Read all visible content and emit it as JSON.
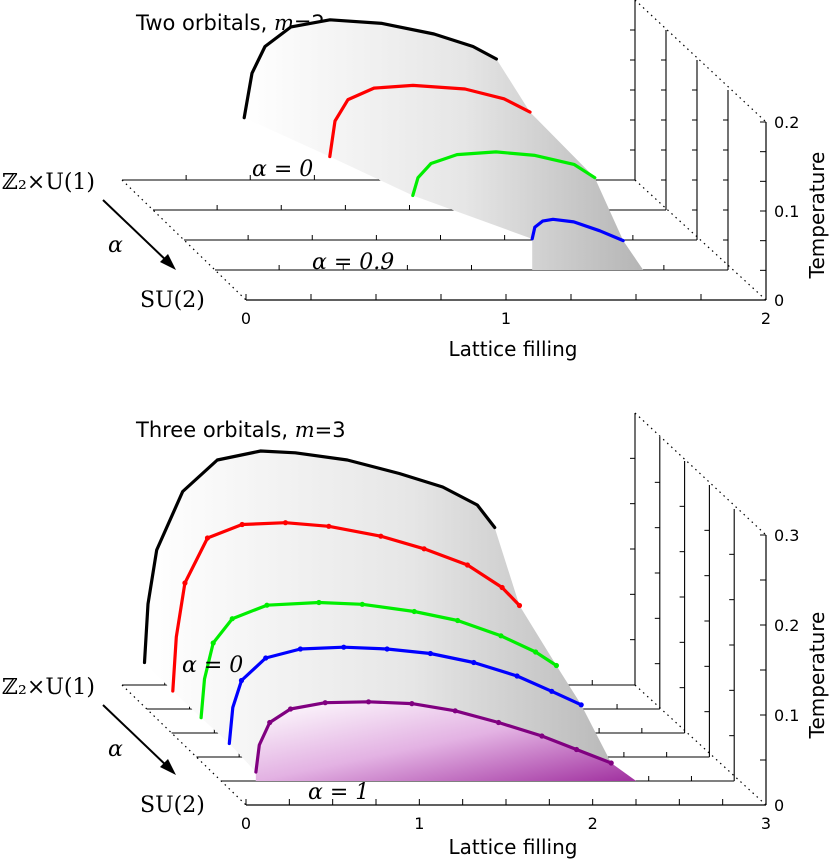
{
  "chart_data": [
    {
      "type": "line",
      "title": "Two orbitals, m=2",
      "title_prefix": "Two orbitals, ",
      "title_var": "m",
      "title_suffix": "=2",
      "xlabel": "Lattice filling",
      "ylabel": "Temperature",
      "xlim": [
        0,
        2
      ],
      "ylim": [
        0,
        0.2
      ],
      "x_ticks": [
        "0",
        "1",
        "2"
      ],
      "y_ticks": [
        "0",
        "0.1",
        "0.2"
      ],
      "depth_axis": {
        "top": "ℤ₂×U(1)",
        "bottom": "SU(2)",
        "arrow_label": "α"
      },
      "layer_labels": [
        {
          "layer": 0,
          "text": "α = 0"
        },
        {
          "layer": 3,
          "text": "α = 0.9"
        }
      ],
      "series": [
        {
          "layer": 0,
          "color": "#000000",
          "x": [
            0.47,
            0.5,
            0.55,
            0.65,
            0.8,
            1.0,
            1.2,
            1.35,
            1.44
          ],
          "y": [
            0.07,
            0.12,
            0.15,
            0.172,
            0.18,
            0.176,
            0.164,
            0.15,
            0.136
          ]
        },
        {
          "layer": 1,
          "color": "#ff0000",
          "x": [
            0.68,
            0.7,
            0.75,
            0.85,
            1.0,
            1.2,
            1.35,
            1.45
          ],
          "y": [
            0.06,
            0.1,
            0.124,
            0.137,
            0.14,
            0.136,
            0.125,
            0.11
          ]
        },
        {
          "layer": 2,
          "color": "#00ee00",
          "x": [
            0.88,
            0.9,
            0.95,
            1.05,
            1.2,
            1.35,
            1.5,
            1.58
          ],
          "y": [
            0.05,
            0.07,
            0.086,
            0.096,
            0.099,
            0.095,
            0.085,
            0.07
          ]
        },
        {
          "layer": 3,
          "color": "#0000ff",
          "x": [
            1.22,
            1.23,
            1.26,
            1.3,
            1.38,
            1.48,
            1.57
          ],
          "y": [
            0.035,
            0.048,
            0.055,
            0.057,
            0.054,
            0.044,
            0.033
          ]
        }
      ]
    },
    {
      "type": "line",
      "title": "Three orbitals, m=3",
      "title_prefix": "Three orbitals, ",
      "title_var": "m",
      "title_suffix": "=3",
      "xlabel": "Lattice filling",
      "ylabel": "Temperature",
      "xlim": [
        0,
        3
      ],
      "ylim": [
        0,
        0.3
      ],
      "x_ticks": [
        "0",
        "1",
        "2",
        "3"
      ],
      "y_ticks": [
        "0",
        "0.1",
        "0.2",
        "0.3"
      ],
      "depth_axis": {
        "top": "ℤ₂×U(1)",
        "bottom": "SU(2)",
        "arrow_label": "α"
      },
      "layer_labels": [
        {
          "layer": 0,
          "text": "α = 0"
        },
        {
          "layer": 4,
          "text": "α = 1"
        }
      ],
      "series": [
        {
          "layer": 0,
          "color": "#000000",
          "x": [
            0.13,
            0.15,
            0.2,
            0.35,
            0.55,
            0.8,
            1.0,
            1.3,
            1.6,
            1.85,
            2.05,
            2.15
          ],
          "y": [
            0.025,
            0.09,
            0.15,
            0.215,
            0.25,
            0.26,
            0.258,
            0.25,
            0.235,
            0.22,
            0.2,
            0.175
          ]
        },
        {
          "layer": 1,
          "color": "#ff0000",
          "x": [
            0.15,
            0.17,
            0.22,
            0.35,
            0.55,
            0.8,
            1.05,
            1.35,
            1.6,
            1.85,
            2.05,
            2.15
          ],
          "y": [
            0.02,
            0.08,
            0.14,
            0.19,
            0.205,
            0.207,
            0.203,
            0.192,
            0.178,
            0.16,
            0.135,
            0.115
          ]
        },
        {
          "layer": 2,
          "color": "#00ee00",
          "x": [
            0.17,
            0.19,
            0.24,
            0.35,
            0.55,
            0.85,
            1.1,
            1.4,
            1.65,
            1.9,
            2.1,
            2.22
          ],
          "y": [
            0.017,
            0.06,
            0.1,
            0.127,
            0.142,
            0.145,
            0.143,
            0.135,
            0.125,
            0.108,
            0.09,
            0.075
          ]
        },
        {
          "layer": 3,
          "color": "#0000ff",
          "x": [
            0.19,
            0.21,
            0.26,
            0.4,
            0.6,
            0.85,
            1.1,
            1.35,
            1.6,
            1.85,
            2.05,
            2.22
          ],
          "y": [
            0.015,
            0.055,
            0.085,
            0.11,
            0.12,
            0.122,
            0.12,
            0.115,
            0.105,
            0.09,
            0.073,
            0.058
          ]
        },
        {
          "layer": 4,
          "color": "#800080",
          "x": [
            0.2,
            0.22,
            0.28,
            0.4,
            0.6,
            0.85,
            1.1,
            1.35,
            1.6,
            1.85,
            2.05,
            2.25
          ],
          "y": [
            0.01,
            0.04,
            0.065,
            0.08,
            0.087,
            0.088,
            0.086,
            0.078,
            0.065,
            0.05,
            0.035,
            0.02
          ]
        }
      ]
    }
  ]
}
